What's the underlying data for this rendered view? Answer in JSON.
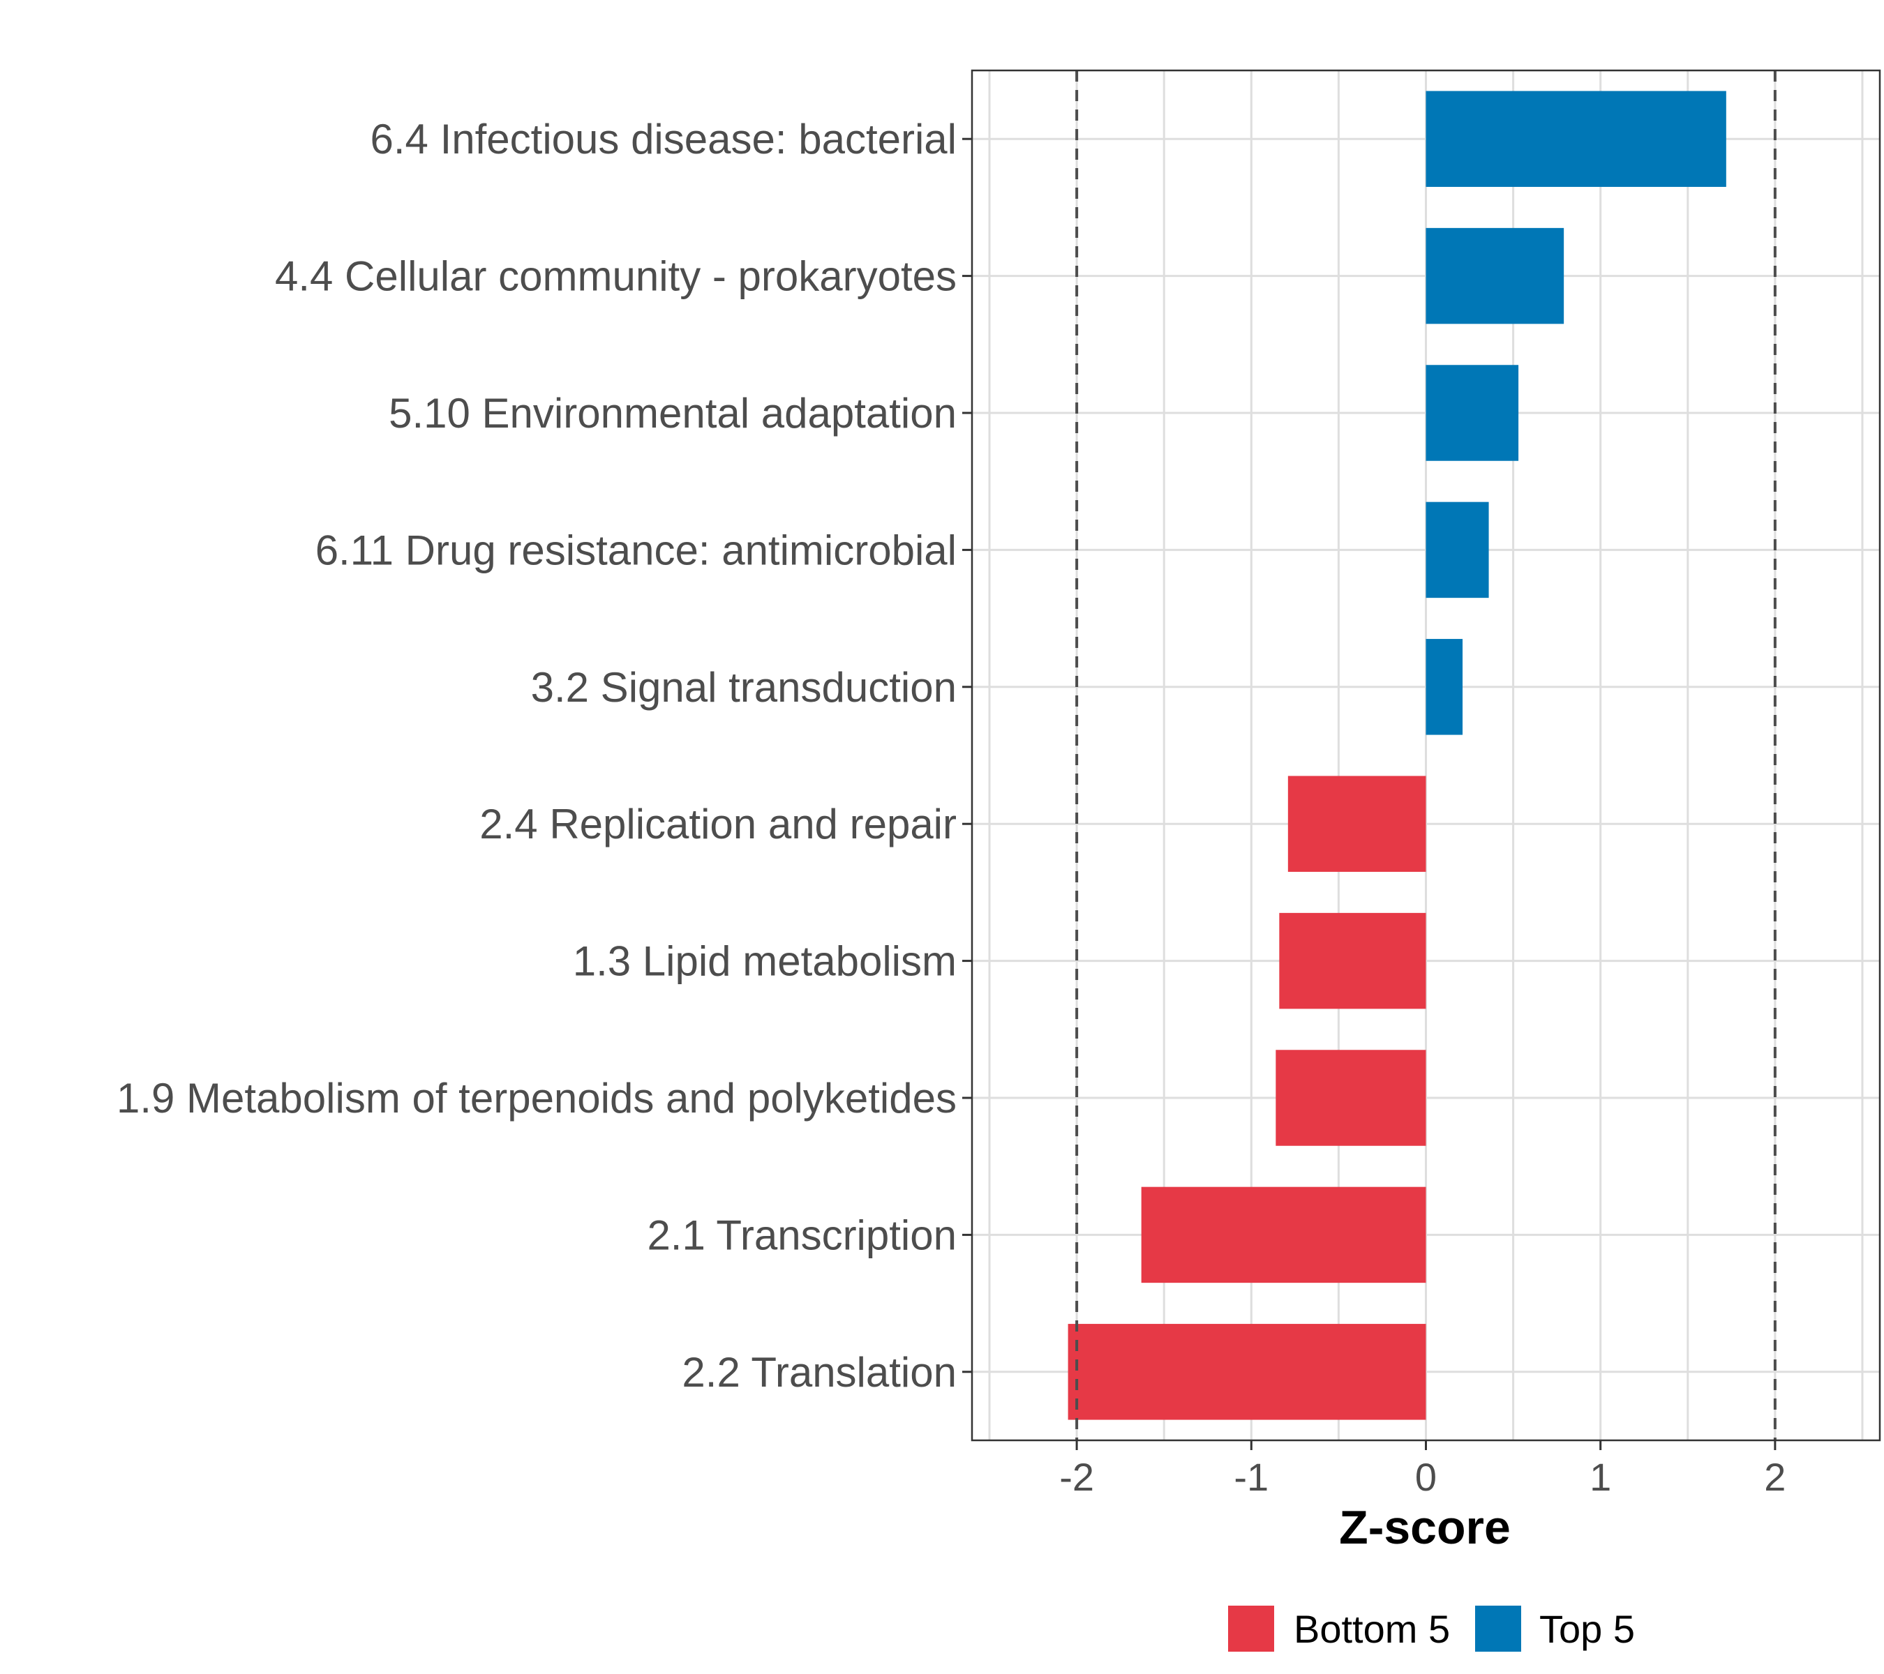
{
  "chart_data": {
    "type": "bar",
    "orientation": "horizontal",
    "title": "",
    "xlabel": "Z-score",
    "ylabel": "",
    "xlim": [
      -2.6,
      2.6
    ],
    "x_ticks": [
      -2,
      -1,
      0,
      1,
      2
    ],
    "x_tick_labels": [
      "-2",
      "-1",
      "0",
      "1",
      "2"
    ],
    "reference_lines": [
      -2,
      2
    ],
    "grid": true,
    "legend_position": "bottom",
    "categories": [
      "6.4 Infectious disease: bacterial",
      "4.4 Cellular community - prokaryotes",
      "5.10 Environmental adaptation",
      "6.11 Drug resistance: antimicrobial",
      "3.2 Signal transduction",
      "2.4 Replication and repair",
      "1.3 Lipid metabolism",
      "1.9 Metabolism of terpenoids and polyketides",
      "2.1 Transcription",
      "2.2 Translation"
    ],
    "values": [
      1.72,
      0.79,
      0.53,
      0.36,
      0.21,
      -0.79,
      -0.84,
      -0.86,
      -1.63,
      -2.05
    ],
    "groups": [
      "Top 5",
      "Top 5",
      "Top 5",
      "Top 5",
      "Top 5",
      "Bottom 5",
      "Bottom 5",
      "Bottom 5",
      "Bottom 5",
      "Bottom 5"
    ],
    "legend": [
      {
        "name": "Bottom 5",
        "color": "#e63946"
      },
      {
        "name": "Top 5",
        "color": "#0077b6"
      }
    ]
  }
}
